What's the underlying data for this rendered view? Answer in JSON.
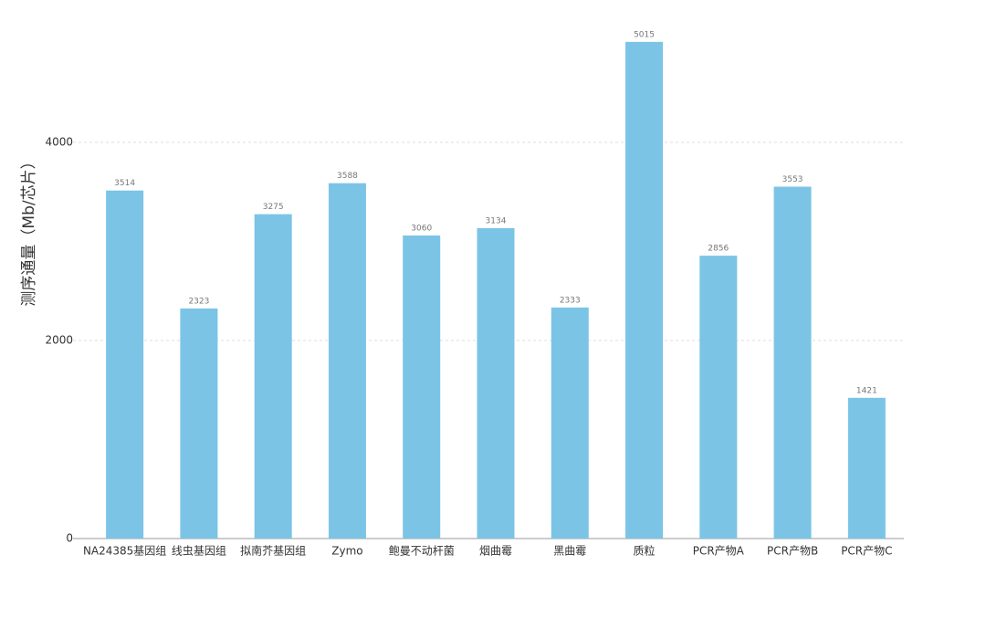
{
  "chart_data": {
    "type": "bar",
    "y_label": "测序通量（Mb/芯片）",
    "categories": [
      "NA24385基因组",
      "线虫基因组",
      "拟南芥基因组",
      "Zymo",
      "鲍曼不动杆菌",
      "烟曲霉",
      "黑曲霉",
      "质粒",
      "PCR产物A",
      "PCR产物B",
      "PCR产物C"
    ],
    "values": [
      3514,
      2323,
      3275,
      3588,
      3060,
      3134,
      2333,
      5015,
      2856,
      3553,
      1421
    ],
    "color": "#7bc4e6",
    "ylim": [
      0,
      5400
    ],
    "yticks": [
      0,
      2000,
      4000
    ],
    "grid": true
  }
}
